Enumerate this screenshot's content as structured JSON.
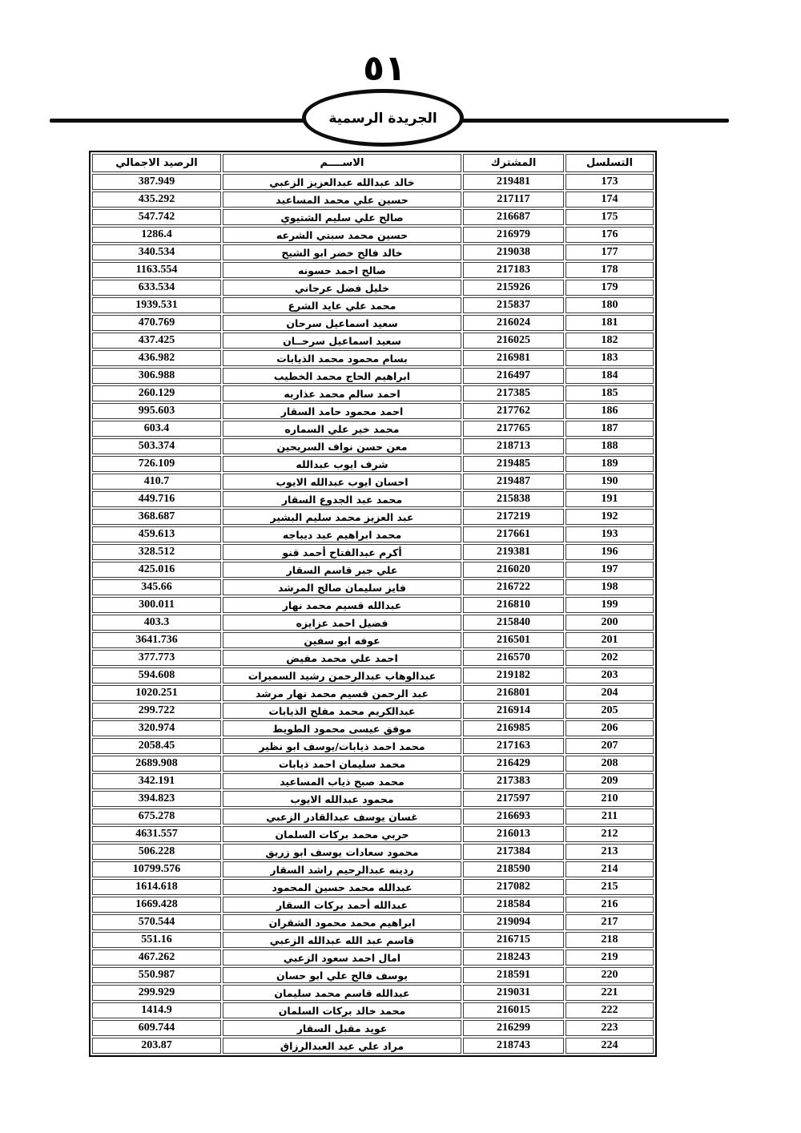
{
  "page": {
    "number": "٥١"
  },
  "banner": {
    "title": "الجريدة الرسمية"
  },
  "table": {
    "headers": {
      "serial": "التسلسل",
      "subscriber": "المشترك",
      "name": "الاســــم",
      "balance": "الرصيد الاجمالي"
    },
    "rows": [
      {
        "serial": "173",
        "subscriber": "219481",
        "name": "خالد عبدالله عبدالعزيز الزعبي",
        "balance": "387.949"
      },
      {
        "serial": "174",
        "subscriber": "217117",
        "name": "حسين علي محمد المساعيد",
        "balance": "435.292"
      },
      {
        "serial": "175",
        "subscriber": "216687",
        "name": "صالح علي سليم الشتيوي",
        "balance": "547.742"
      },
      {
        "serial": "176",
        "subscriber": "216979",
        "name": "حسين محمد سبتي الشرعه",
        "balance": "1286.4"
      },
      {
        "serial": "177",
        "subscriber": "219038",
        "name": "خالد فالح خضر ابو الشيح",
        "balance": "340.534"
      },
      {
        "serial": "178",
        "subscriber": "217183",
        "name": "صالح احمد حسونه",
        "balance": "1163.554"
      },
      {
        "serial": "179",
        "subscriber": "215926",
        "name": "خليل فضل عرجاني",
        "balance": "633.534"
      },
      {
        "serial": "180",
        "subscriber": "215837",
        "name": "محمد علي عايد الشرع",
        "balance": "1939.531"
      },
      {
        "serial": "181",
        "subscriber": "216024",
        "name": "سعيد اسماعيل سرحان",
        "balance": "470.769"
      },
      {
        "serial": "182",
        "subscriber": "216025",
        "name": "سعيد اسماعيل سرحــان",
        "balance": "437.425"
      },
      {
        "serial": "183",
        "subscriber": "216981",
        "name": "بسام محمود محمد الذيابات",
        "balance": "436.982"
      },
      {
        "serial": "184",
        "subscriber": "216497",
        "name": "ابراهيم الحاج محمد الخطيب",
        "balance": "306.988"
      },
      {
        "serial": "185",
        "subscriber": "217385",
        "name": "احمد سالم محمد عذاربه",
        "balance": "260.129"
      },
      {
        "serial": "186",
        "subscriber": "217762",
        "name": "احمد محمود حامد السقار",
        "balance": "995.603"
      },
      {
        "serial": "187",
        "subscriber": "217765",
        "name": "محمد خير علي السماره",
        "balance": "603.4"
      },
      {
        "serial": "188",
        "subscriber": "218713",
        "name": "معن حسن نواف السريحين",
        "balance": "503.374"
      },
      {
        "serial": "189",
        "subscriber": "219485",
        "name": "شرف ايوب عبدالله",
        "balance": "726.109"
      },
      {
        "serial": "190",
        "subscriber": "219487",
        "name": "احسان ايوب عبدالله الايوب",
        "balance": "410.7"
      },
      {
        "serial": "191",
        "subscriber": "215838",
        "name": "محمد عبد الجدوع السقار",
        "balance": "449.716"
      },
      {
        "serial": "192",
        "subscriber": "217219",
        "name": "عبد العزيز محمد سليم البشير",
        "balance": "368.687"
      },
      {
        "serial": "193",
        "subscriber": "217661",
        "name": "محمد ابراهيم عبد ديباجه",
        "balance": "459.613"
      },
      {
        "serial": "196",
        "subscriber": "219381",
        "name": "أكرم عبدالفتاح أحمد قنو",
        "balance": "328.512"
      },
      {
        "serial": "197",
        "subscriber": "216020",
        "name": "علي جبر قاسم السقار",
        "balance": "425.016"
      },
      {
        "serial": "198",
        "subscriber": "216722",
        "name": "فايز سليمان صالح المرشد",
        "balance": "345.66"
      },
      {
        "serial": "199",
        "subscriber": "216810",
        "name": "عبدالله قسيم محمد نهار",
        "balance": "300.011"
      },
      {
        "serial": "200",
        "subscriber": "215840",
        "name": "فضيل احمد عزايزه",
        "balance": "403.3"
      },
      {
        "serial": "201",
        "subscriber": "216501",
        "name": "عوفه ابو سفين",
        "balance": "3641.736"
      },
      {
        "serial": "202",
        "subscriber": "216570",
        "name": "احمد علي محمد مفيض",
        "balance": "377.773"
      },
      {
        "serial": "203",
        "subscriber": "219182",
        "name": "عبدالوهاب عبدالرحمن رشيد السميرات",
        "balance": "594.608"
      },
      {
        "serial": "204",
        "subscriber": "216801",
        "name": "عبد الرحمن قسيم محمد نهار مرشد",
        "balance": "1020.251"
      },
      {
        "serial": "205",
        "subscriber": "216914",
        "name": "عبدالكريم محمد مفلح الذيابات",
        "balance": "299.722"
      },
      {
        "serial": "206",
        "subscriber": "216985",
        "name": "موفق عيسى محمود الطويط",
        "balance": "320.974"
      },
      {
        "serial": "207",
        "subscriber": "217163",
        "name": "محمد احمد ذيابات/يوسف ابو نظير",
        "balance": "2058.45"
      },
      {
        "serial": "208",
        "subscriber": "216429",
        "name": "محمد سليمان احمد ذيابات",
        "balance": "2689.908"
      },
      {
        "serial": "209",
        "subscriber": "217383",
        "name": "محمد صبح ذياب المساعيد",
        "balance": "342.191"
      },
      {
        "serial": "210",
        "subscriber": "217597",
        "name": "محمود عبدالله الايوب",
        "balance": "394.823"
      },
      {
        "serial": "211",
        "subscriber": "216693",
        "name": "غسان يوسف عبدالقادر الزعبي",
        "balance": "675.278"
      },
      {
        "serial": "212",
        "subscriber": "216013",
        "name": "حربي محمد بركات السلمان",
        "balance": "4631.557"
      },
      {
        "serial": "213",
        "subscriber": "217384",
        "name": "محمود سعادات يوسف ابو زريق",
        "balance": "506.228"
      },
      {
        "serial": "214",
        "subscriber": "218590",
        "name": "ردينه عبدالرحيم راشد السقار",
        "balance": "10799.576"
      },
      {
        "serial": "215",
        "subscriber": "217082",
        "name": "عبدالله محمد حسين المحمود",
        "balance": "1614.618"
      },
      {
        "serial": "216",
        "subscriber": "218584",
        "name": "عبدالله أحمد بركات السقار",
        "balance": "1669.428"
      },
      {
        "serial": "217",
        "subscriber": "219094",
        "name": "ابراهيم محمد محمود الشقران",
        "balance": "570.544"
      },
      {
        "serial": "218",
        "subscriber": "216715",
        "name": "قاسم عبد الله عبدالله الزعبي",
        "balance": "551.16"
      },
      {
        "serial": "219",
        "subscriber": "218243",
        "name": "امال احمد سعود الزعبي",
        "balance": "467.262"
      },
      {
        "serial": "220",
        "subscriber": "218591",
        "name": "يوسف فالح علي ابو حسان",
        "balance": "550.987"
      },
      {
        "serial": "221",
        "subscriber": "219031",
        "name": "عبدالله قاسم محمد سليمان",
        "balance": "299.929"
      },
      {
        "serial": "222",
        "subscriber": "216015",
        "name": "محمد خالد بركات السلمان",
        "balance": "1414.9"
      },
      {
        "serial": "223",
        "subscriber": "216299",
        "name": "عويد مقبل السقار",
        "balance": "609.744"
      },
      {
        "serial": "224",
        "subscriber": "218743",
        "name": "مراد علي عيد العبدالرزاق",
        "balance": "203.87"
      }
    ]
  }
}
